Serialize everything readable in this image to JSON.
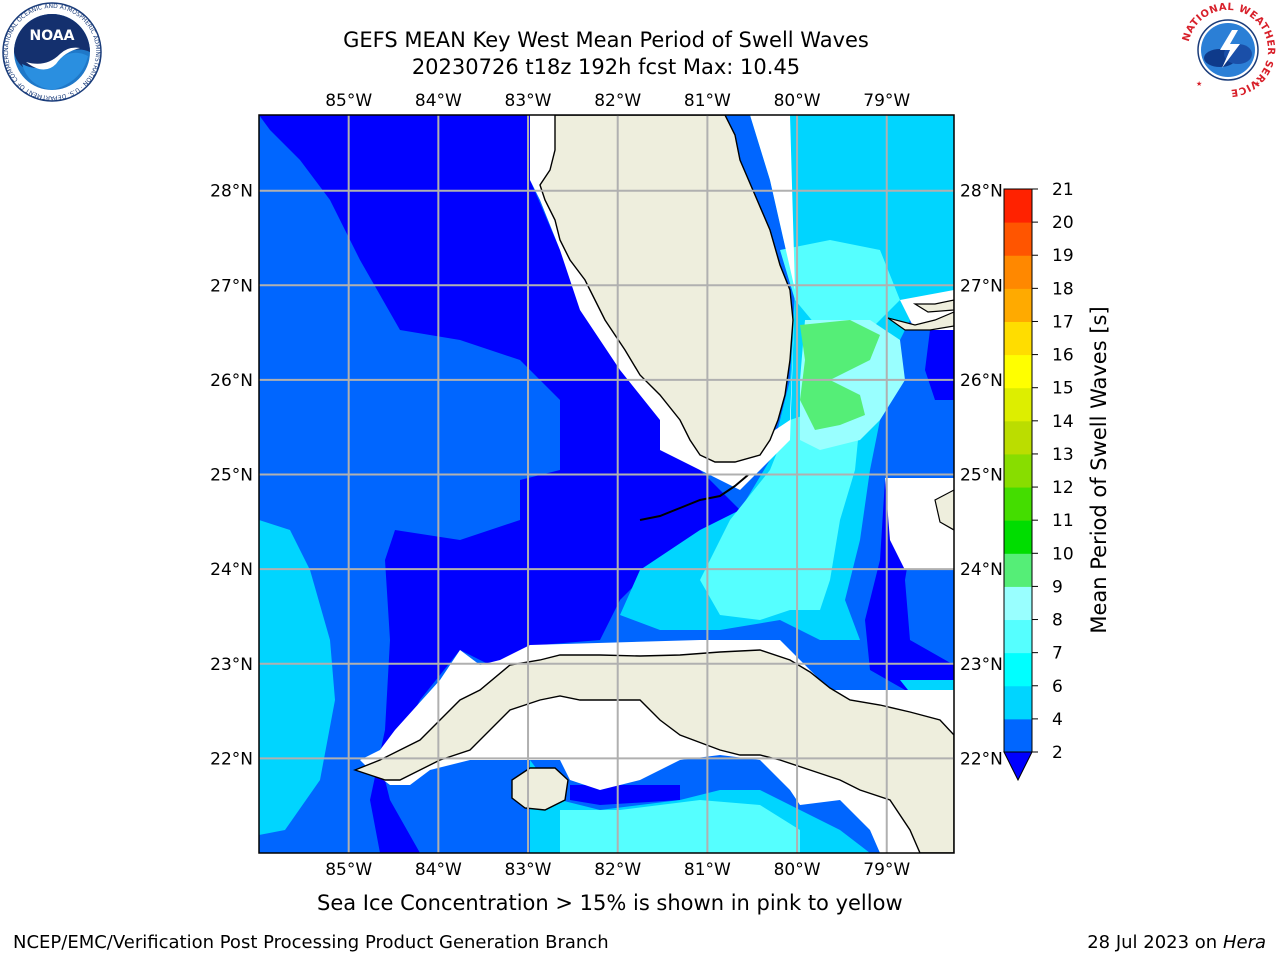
{
  "title": {
    "line1": "GEFS MEAN Key West Mean Period of Swell Waves",
    "line2": "20230726 t18z 192h fcst   Max: 10.45"
  },
  "map": {
    "lon_range": [
      -86.0,
      -78.25
    ],
    "lat_range": [
      21.0,
      28.8
    ],
    "lon_ticks": [
      "85°W",
      "84°W",
      "83°W",
      "82°W",
      "81°W",
      "80°W",
      "79°W"
    ],
    "lon_values": [
      -85,
      -84,
      -83,
      -82,
      -81,
      -80,
      -79
    ],
    "lat_ticks": [
      "22°N",
      "23°N",
      "24°N",
      "25°N",
      "26°N",
      "27°N",
      "28°N"
    ],
    "lat_values": [
      22,
      23,
      24,
      25,
      26,
      27,
      28
    ],
    "grid": true,
    "land_color": "#eeeedd",
    "coast_color": "#000000"
  },
  "colorbar": {
    "label": "Mean Period of Swell Waves [s]",
    "levels": [
      2,
      4,
      6,
      7,
      8,
      9,
      10,
      11,
      12,
      13,
      14,
      15,
      16,
      17,
      18,
      19,
      20,
      21
    ],
    "tick_labels": [
      "2",
      "4",
      "6",
      "7",
      "8",
      "9",
      "10",
      "11",
      "12",
      "13",
      "14",
      "15",
      "16",
      "17",
      "18",
      "19",
      "20",
      "21"
    ],
    "colors": [
      "#0066ff",
      "#00d5ff",
      "#00ffff",
      "#55ffff",
      "#99ffff",
      "#55ee77",
      "#00dd00",
      "#44dd00",
      "#88dd00",
      "#bbdd00",
      "#ddee00",
      "#ffff00",
      "#ffdd00",
      "#ffaa00",
      "#ff8800",
      "#ff5500",
      "#ff2200",
      "#ff0000"
    ],
    "under_color": "#0000ff",
    "extend": "min"
  },
  "ice_note": "Sea Ice Concentration > 15% is shown in pink to yellow",
  "footer": {
    "left": "NCEP/EMC/Verification Post Processing Product Generation Branch",
    "date": "28 Jul 2023 on ",
    "host": "Hera"
  },
  "logos": {
    "noaa_text": "NOAA",
    "noaa_ring_text": "NATIONAL OCEANIC AND ATMOSPHERIC ADMINISTRATION · U.S. DEPARTMENT OF COMMERCE",
    "nws_ring_text": "NATIONAL WEATHER SERVICE"
  }
}
